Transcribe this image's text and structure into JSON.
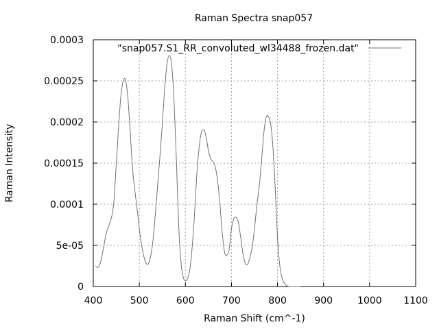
{
  "chart_data": {
    "type": "line",
    "title": "Raman Spectra snap057",
    "xlabel": "Raman Shift (cm^-1)",
    "ylabel": "Raman Intensity",
    "xlim": [
      400,
      1100
    ],
    "ylim": [
      0,
      0.0003
    ],
    "x_ticks": [
      400,
      500,
      600,
      700,
      800,
      900,
      1000,
      1100
    ],
    "y_ticks": [
      0,
      5e-05,
      0.0001,
      0.00015,
      0.0002,
      0.00025,
      0.0003
    ],
    "x_tick_labels": [
      "400",
      "500",
      "600",
      "700",
      "800",
      "900",
      "1000",
      "1100"
    ],
    "y_tick_labels": [
      "0",
      "5e-05",
      "0.0001",
      "0.00015",
      "0.0002",
      "0.00025",
      "0.0003"
    ],
    "grid": true,
    "legend_position": "top-right",
    "series": [
      {
        "name": "\"snap057.S1_RR_convoluted_wl34488_frozen.dat\"",
        "color": "#707070",
        "x": [
          405,
          410,
          415,
          420,
          425,
          430,
          440,
          445,
          450,
          455,
          460,
          465,
          470,
          475,
          480,
          485,
          490,
          495,
          500,
          505,
          510,
          515,
          520,
          525,
          530,
          535,
          540,
          545,
          550,
          555,
          560,
          565,
          570,
          575,
          580,
          585,
          590,
          595,
          600,
          605,
          610,
          615,
          620,
          625,
          630,
          635,
          640,
          645,
          650,
          655,
          660,
          665,
          670,
          675,
          680,
          685,
          690,
          695,
          700,
          705,
          710,
          715,
          720,
          725,
          730,
          735,
          740,
          745,
          750,
          755,
          760,
          765,
          770,
          775,
          780,
          785,
          790,
          795,
          800,
          805,
          810,
          815,
          820,
          825,
          830,
          835,
          840,
          845,
          850
        ],
        "y": [
          2.5e-05,
          2.3e-05,
          2.8e-05,
          4e-05,
          5.6e-05,
          6.8e-05,
          8.5e-05,
          0.000105,
          0.00015,
          0.000195,
          0.000232,
          0.00025,
          0.000251,
          0.00023,
          0.00019,
          0.000145,
          0.000118,
          9.5e-05,
          7e-05,
          5e-05,
          3.6e-05,
          2.8e-05,
          2.8e-05,
          3.8e-05,
          5.8e-05,
          9e-05,
          0.000125,
          0.00016,
          0.000198,
          0.00024,
          0.00027,
          0.000281,
          0.00027,
          0.00023,
          0.00016,
          8e-05,
          3.2e-05,
          1.2e-05,
          7e-06,
          1e-05,
          2.2e-05,
          5e-05,
          9e-05,
          0.000138,
          0.00017,
          0.000188,
          0.00019,
          0.000182,
          0.000165,
          0.000155,
          0.000152,
          0.000145,
          0.000128,
          0.0001,
          6.5e-05,
          4.2e-05,
          3.8e-05,
          4.5e-05,
          7e-05,
          8.2e-05,
          8.4e-05,
          7.8e-05,
          6e-05,
          4e-05,
          2.8e-05,
          2.7e-05,
          3.5e-05,
          4.8e-05,
          7e-05,
          9.8e-05,
          0.00012,
          0.00015,
          0.000185,
          0.000205,
          0.000207,
          0.000198,
          0.00017,
          0.00012,
          6e-05,
          2.5e-05,
          1e-05,
          4e-06,
          1e-06,
          0.0,
          0.0,
          0.0,
          0.0,
          0.0,
          0.0
        ]
      }
    ]
  }
}
